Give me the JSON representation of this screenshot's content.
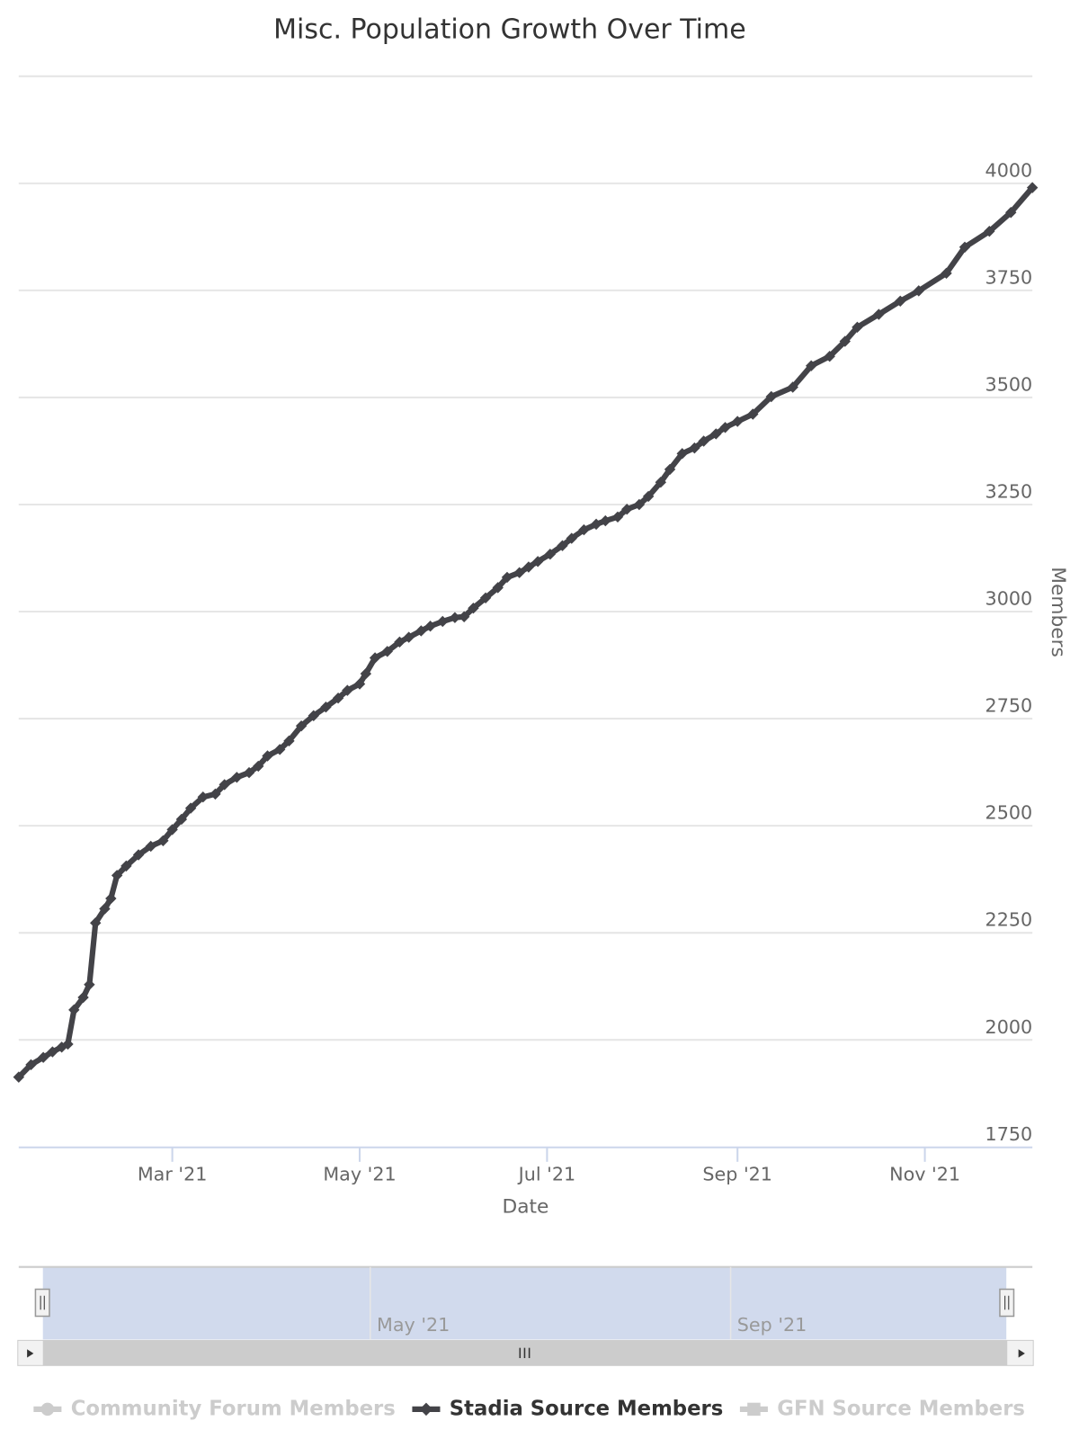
{
  "chart_data": {
    "type": "line",
    "title": "Misc. Population Growth Over Time",
    "x_label": "Date",
    "y_label": "Members",
    "y_axis_side": "right",
    "grid": true,
    "x": [
      9,
      13,
      17,
      20,
      23,
      25,
      27,
      30,
      32,
      34,
      37,
      39,
      41,
      44,
      48,
      52,
      56,
      59,
      62,
      65,
      69,
      73,
      76,
      80,
      84,
      87,
      90,
      94,
      97,
      101,
      105,
      109,
      113,
      116,
      120,
      122,
      125,
      129,
      133,
      136,
      140,
      143,
      147,
      151,
      154,
      157,
      161,
      165,
      168,
      172,
      175,
      178,
      182,
      186,
      189,
      193,
      197,
      200,
      204,
      207,
      211,
      214,
      218,
      221,
      225,
      229,
      232,
      236,
      239,
      243,
      248,
      254,
      261,
      267,
      273,
      278,
      282,
      289,
      296,
      302,
      311,
      317,
      325,
      332,
      339
    ],
    "xlim": [
      9,
      339
    ],
    "xticks": [
      {
        "value": 59,
        "label": "Mar '21"
      },
      {
        "value": 120,
        "label": "May '21"
      },
      {
        "value": 181,
        "label": "Jul '21"
      },
      {
        "value": 243,
        "label": "Sep '21"
      },
      {
        "value": 304,
        "label": "Nov '21"
      }
    ],
    "ylim": [
      1750,
      4250
    ],
    "yticks": [
      1750,
      2000,
      2250,
      2500,
      2750,
      3000,
      3250,
      3500,
      3750,
      4000
    ],
    "series": [
      {
        "name": "Community Forum Members",
        "visible": false,
        "marker": "circle"
      },
      {
        "name": "Stadia Source Members",
        "visible": true,
        "marker": "diamond",
        "color": "#434348",
        "values": [
          1913,
          1942,
          1959,
          1972,
          1983,
          1990,
          2070,
          2099,
          2129,
          2273,
          2306,
          2330,
          2384,
          2406,
          2432,
          2452,
          2465,
          2491,
          2515,
          2541,
          2567,
          2574,
          2596,
          2613,
          2624,
          2639,
          2663,
          2678,
          2698,
          2733,
          2757,
          2777,
          2798,
          2816,
          2831,
          2855,
          2892,
          2907,
          2929,
          2940,
          2955,
          2966,
          2977,
          2986,
          2988,
          3008,
          3032,
          3056,
          3080,
          3091,
          3104,
          3117,
          3134,
          3154,
          3171,
          3191,
          3204,
          3212,
          3221,
          3239,
          3250,
          3269,
          3302,
          3332,
          3369,
          3382,
          3398,
          3415,
          3430,
          3444,
          3461,
          3502,
          3524,
          3574,
          3596,
          3631,
          3664,
          3694,
          3725,
          3749,
          3790,
          3851,
          3888,
          3932,
          3990
        ]
      },
      {
        "name": "GFN Source Members",
        "visible": false,
        "marker": "square"
      }
    ],
    "navigator": {
      "xlim": [
        0,
        346
      ],
      "xticks": [
        {
          "value": 120,
          "label": "May '21"
        },
        {
          "value": 243,
          "label": "Sep '21"
        }
      ]
    }
  }
}
